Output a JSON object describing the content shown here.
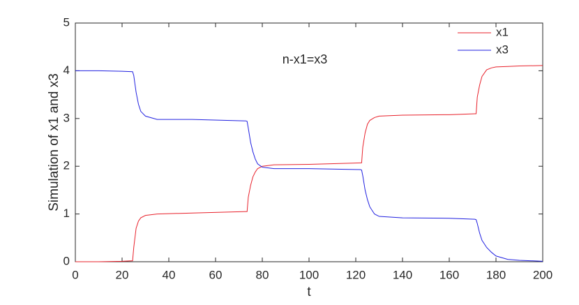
{
  "chart_data": {
    "type": "line",
    "xlabel": "t",
    "ylabel": "Simulation of x1 and x3",
    "annotation": "n-x1=x3",
    "x": [
      0,
      10,
      20,
      24.5,
      25,
      26,
      27,
      28,
      30,
      35,
      50,
      73,
      73.5,
      74,
      75,
      76,
      77,
      78,
      80,
      85,
      100,
      122,
      122.5,
      123,
      124,
      125,
      126,
      128,
      130,
      140,
      160,
      171,
      171.5,
      172,
      173,
      174,
      176,
      178,
      180,
      185,
      190,
      200
    ],
    "series": [
      {
        "name": "x1",
        "color": "#e8202a",
        "values": [
          0,
          0,
          0.01,
          0.02,
          0.3,
          0.7,
          0.85,
          0.92,
          0.97,
          1.0,
          1.02,
          1.05,
          1.05,
          1.35,
          1.6,
          1.78,
          1.88,
          1.95,
          2.0,
          2.03,
          2.04,
          2.07,
          2.07,
          2.4,
          2.7,
          2.88,
          2.96,
          3.02,
          3.05,
          3.07,
          3.08,
          3.1,
          3.1,
          3.45,
          3.7,
          3.88,
          4.02,
          4.06,
          4.08,
          4.09,
          4.1,
          4.11
        ]
      },
      {
        "name": "x3",
        "color": "#2020e0",
        "values": [
          4.0,
          4.0,
          3.99,
          3.98,
          3.9,
          3.55,
          3.3,
          3.15,
          3.05,
          2.98,
          2.98,
          2.95,
          2.94,
          2.8,
          2.5,
          2.3,
          2.15,
          2.05,
          1.98,
          1.95,
          1.95,
          1.93,
          1.92,
          1.8,
          1.5,
          1.3,
          1.15,
          1.0,
          0.95,
          0.92,
          0.91,
          0.89,
          0.88,
          0.8,
          0.6,
          0.45,
          0.3,
          0.2,
          0.12,
          0.05,
          0.03,
          0.01
        ]
      }
    ],
    "xlim": [
      0,
      200
    ],
    "xticks": [
      0,
      20,
      40,
      60,
      80,
      100,
      120,
      140,
      160,
      180,
      200
    ],
    "ylim": [
      0,
      5
    ],
    "yticks": [
      0,
      1,
      2,
      3,
      4,
      5
    ],
    "grid": false,
    "legend": "northeast"
  }
}
